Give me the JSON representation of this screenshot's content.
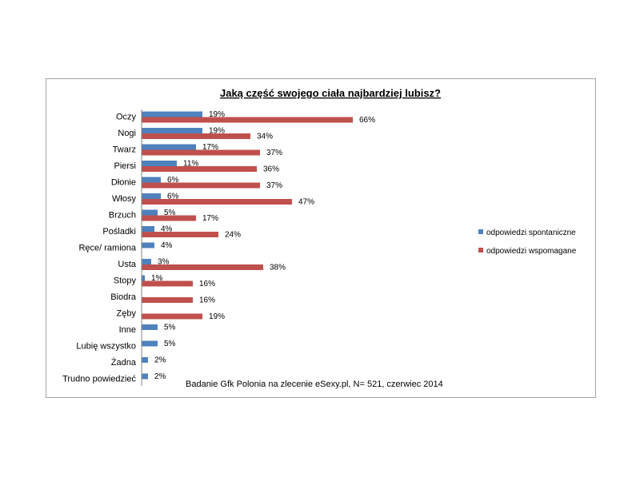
{
  "chart_data": {
    "type": "bar",
    "orientation": "horizontal",
    "title": "Jaką część swojego ciała najbardziej lubisz?",
    "note": "Badanie Gfk Polonia na zlecenie eSexy.pl, N= 521, czerwiec 2014",
    "categories": [
      "Oczy",
      "Nogi",
      "Twarz",
      "Piersi",
      "Dłonie",
      "Włosy",
      "Brzuch",
      "Pośladki",
      "Ręce/ ramiona",
      "Usta",
      "Stopy",
      "Biodra",
      "Zęby",
      "Inne",
      "Lubię wszystko",
      "Żadna",
      "Trudno powiedzieć"
    ],
    "series": [
      {
        "name": "odpowiedzi spontaniczne",
        "color": "#4f81bd",
        "values": [
          19,
          19,
          17,
          11,
          6,
          6,
          5,
          4,
          4,
          3,
          1,
          null,
          null,
          5,
          5,
          2,
          2
        ],
        "labels": [
          "19%",
          "19%",
          "17%",
          "11%",
          "6%",
          "6%",
          "5%",
          "4%",
          "4%",
          "3%",
          "1%",
          "",
          "",
          "5%",
          "5%",
          "2%",
          "2%"
        ]
      },
      {
        "name": "odpowiedzi wspomagane",
        "color": "#c0504d",
        "values": [
          66,
          34,
          37,
          36,
          37,
          47,
          17,
          24,
          null,
          38,
          16,
          16,
          19,
          null,
          null,
          null,
          null
        ],
        "labels": [
          "66%",
          "34%",
          "37%",
          "36%",
          "37%",
          "47%",
          "17%",
          "24%",
          "",
          "38%",
          "16%",
          "16%",
          "19%",
          "",
          "",
          "",
          ""
        ]
      }
    ],
    "xlim": [
      0,
      100
    ],
    "legend_position": "right",
    "grid": false
  }
}
